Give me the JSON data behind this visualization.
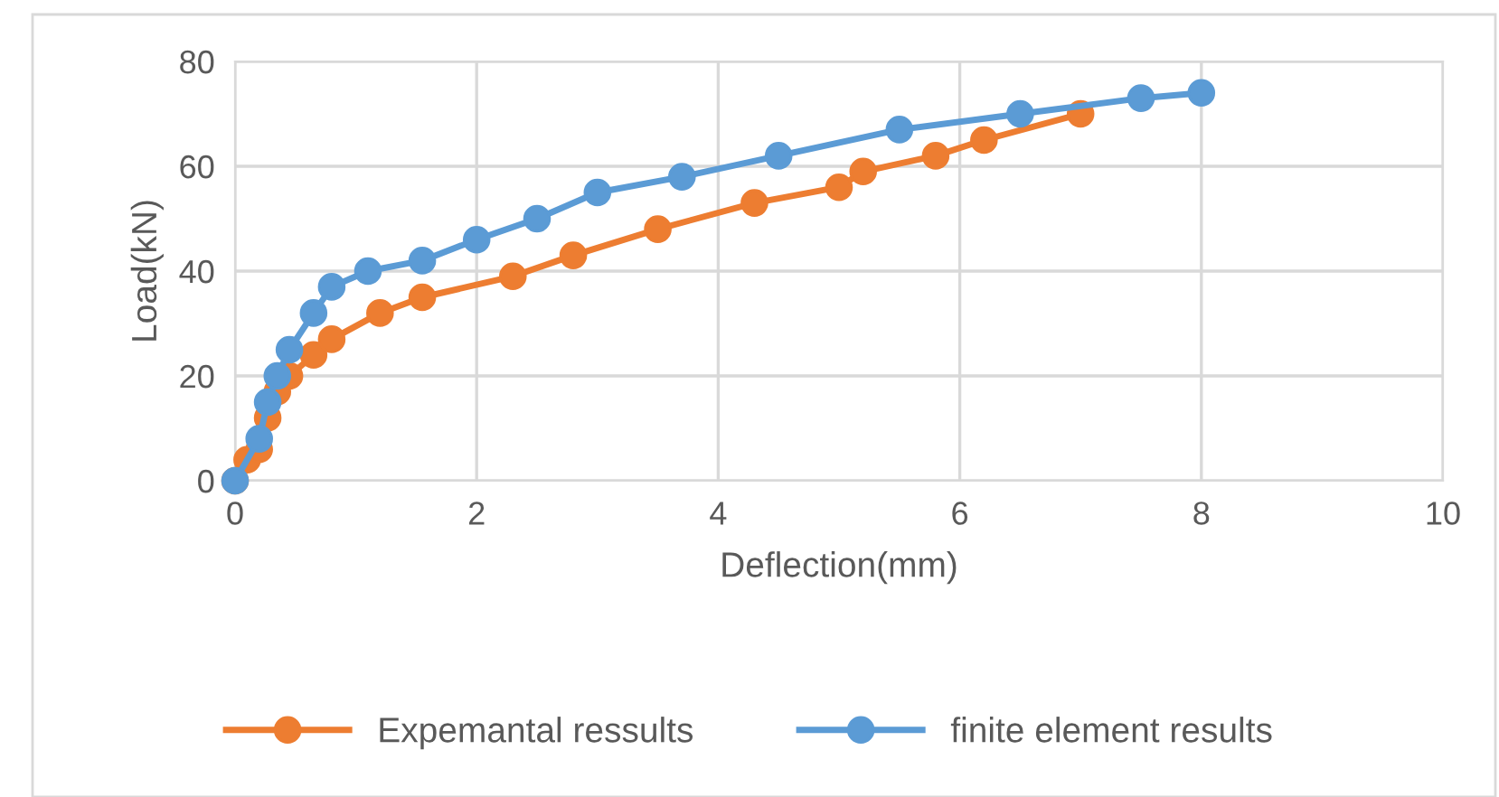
{
  "chart_data": {
    "type": "line",
    "xlabel": "Deflection(mm)",
    "ylabel": "Load(kN)",
    "xlim": [
      0,
      10
    ],
    "xticks": [
      0,
      2,
      4,
      6,
      8,
      10
    ],
    "ylim": [
      0,
      80
    ],
    "yticks": [
      0,
      20,
      40,
      60,
      80
    ],
    "grid": true,
    "legend": "bottom",
    "marker": "circle",
    "line_style": "solid",
    "series": [
      {
        "name": "Expemantal ressults",
        "color": "#ed7d31",
        "x": [
          0,
          0.1,
          0.2,
          0.27,
          0.35,
          0.45,
          0.65,
          0.8,
          1.2,
          1.55,
          2.3,
          2.8,
          3.5,
          4.3,
          5.0,
          5.2,
          5.8,
          6.2,
          7.0
        ],
        "values": [
          0,
          4,
          6,
          12,
          17,
          20,
          24,
          27,
          32,
          35,
          39,
          43,
          48,
          53,
          56,
          59,
          62,
          65,
          70
        ]
      },
      {
        "name": "finite element results",
        "color": "#5b9bd5",
        "x": [
          0,
          0.2,
          0.27,
          0.35,
          0.45,
          0.65,
          0.8,
          1.1,
          1.55,
          2.0,
          2.5,
          3.0,
          3.7,
          4.5,
          5.5,
          6.5,
          7.5,
          8.0
        ],
        "values": [
          0,
          8,
          15,
          20,
          25,
          32,
          37,
          40,
          42,
          46,
          50,
          55,
          58,
          62,
          67,
          70,
          73,
          74
        ]
      }
    ]
  }
}
